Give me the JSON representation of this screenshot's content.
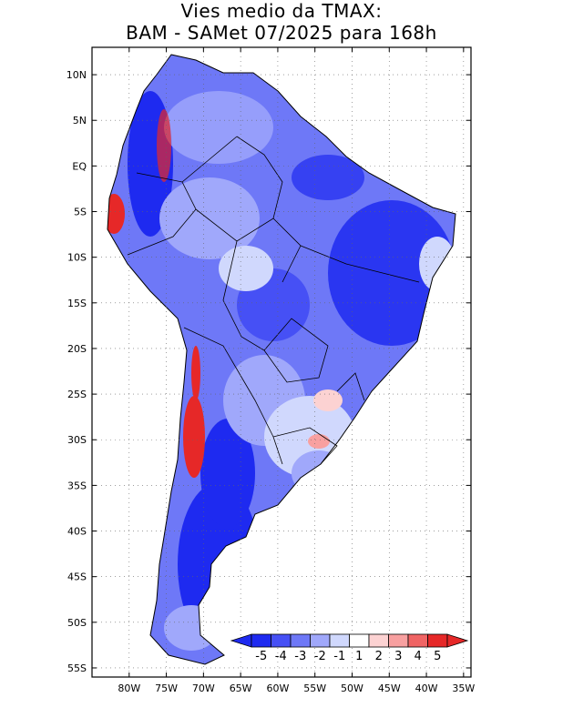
{
  "title": {
    "line1": "Vies medio da TMAX:",
    "line2": "BAM - SAMet 07/2025  para 168h"
  },
  "map": {
    "region": "South America",
    "projection": "lat-lon",
    "lon_range": [
      -85,
      -34
    ],
    "lat_range": [
      -56,
      13
    ],
    "lat_ticks": [
      "10N",
      "5N",
      "EQ",
      "5S",
      "10S",
      "15S",
      "20S",
      "25S",
      "30S",
      "35S",
      "40S",
      "45S",
      "50S",
      "55S"
    ],
    "lon_ticks": [
      "80W",
      "75W",
      "70W",
      "65W",
      "60W",
      "55W",
      "50W",
      "45W",
      "40W",
      "35W"
    ],
    "gridlines": "dotted"
  },
  "colorbar": {
    "labels": [
      "-5",
      "-4",
      "-3",
      "-2",
      "-1",
      "1",
      "2",
      "3",
      "4",
      "5"
    ],
    "colors": [
      "#1e2af0",
      "#4650f5",
      "#6e78f7",
      "#a0a8fb",
      "#d0d8fd",
      "#ffffff",
      "#fcd2d2",
      "#f8a0a0",
      "#f06464",
      "#e62828"
    ],
    "left_arrow_color": "#1e2af0",
    "right_arrow_color": "#e62828"
  },
  "palette": {
    "deep_blue": "#1e2af0",
    "mid_blue": "#6e78f7",
    "light_blue": "#a0a8fb",
    "pale_blue": "#d0d8fd",
    "red": "#e62828",
    "pink": "#f8a0a0"
  }
}
